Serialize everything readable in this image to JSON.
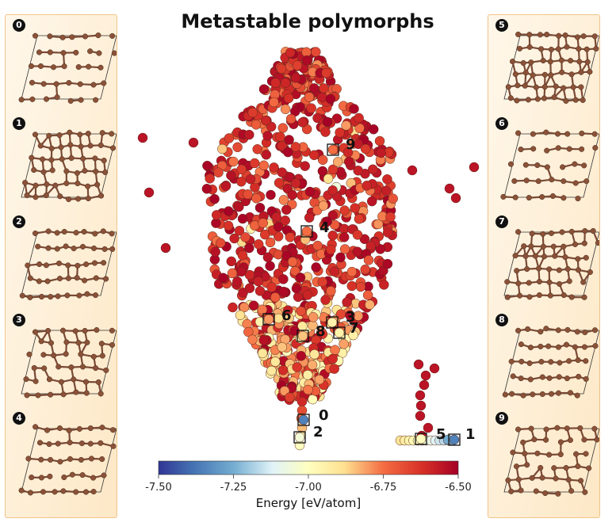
{
  "title": "Metastable polymorphs",
  "structures": [
    {
      "id": "0",
      "lattice": "hexagonal-sheet",
      "icon": "carbon-structure-icon"
    },
    {
      "id": "1",
      "lattice": "rhombic-network",
      "icon": "carbon-structure-icon"
    },
    {
      "id": "2",
      "lattice": "chain-network",
      "icon": "carbon-structure-icon"
    },
    {
      "id": "3",
      "lattice": "mixed-rings",
      "icon": "carbon-structure-icon"
    },
    {
      "id": "4",
      "lattice": "dense-3d",
      "icon": "carbon-structure-icon"
    },
    {
      "id": "5",
      "lattice": "puckered-rings",
      "icon": "carbon-structure-icon"
    },
    {
      "id": "6",
      "lattice": "large-rings",
      "icon": "carbon-structure-icon"
    },
    {
      "id": "7",
      "lattice": "layered-square",
      "icon": "carbon-structure-icon"
    },
    {
      "id": "8",
      "lattice": "open-network",
      "icon": "carbon-structure-icon"
    },
    {
      "id": "9",
      "lattice": "hexagonal-open",
      "icon": "carbon-structure-icon"
    }
  ],
  "chart_data": {
    "type": "scatter",
    "title": "Metastable polymorphs",
    "xlabel": "",
    "ylabel": "",
    "axes_visible": false,
    "colorbar": {
      "label": "Energy [eV/atom]",
      "min": -7.5,
      "max": -6.5,
      "ticks": [
        "-7.50",
        "-7.25",
        "-7.00",
        "-6.75",
        "-6.50"
      ],
      "colormap": "RdYlBu_r"
    },
    "cloud_points_note": "approx. 1000 points, energies mostly -6.5 to -6.9 eV/atom",
    "highlighted_points": [
      {
        "label": "0",
        "energy": -7.35
      },
      {
        "label": "1",
        "energy": -7.35
      },
      {
        "label": "2",
        "energy": -7.05
      },
      {
        "label": "3",
        "energy": -6.95
      },
      {
        "label": "4",
        "energy": -6.75
      },
      {
        "label": "5",
        "energy": -7.0
      },
      {
        "label": "6",
        "energy": -6.8
      },
      {
        "label": "7",
        "energy": -6.95
      },
      {
        "label": "8",
        "energy": -6.85
      },
      {
        "label": "9",
        "energy": -6.75
      }
    ]
  }
}
